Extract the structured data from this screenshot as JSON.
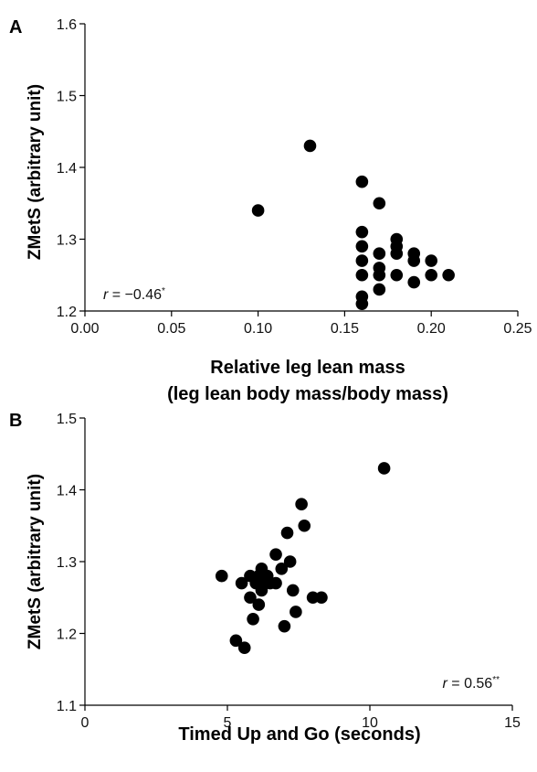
{
  "chart_data": [
    {
      "type": "scatter",
      "panel_label": "A",
      "xlabel_line1": "Relative leg lean mass",
      "xlabel_line2": "(leg lean body mass/body mass)",
      "ylabel": "ZMetS (arbitrary unit)",
      "xlim": [
        0.0,
        0.25
      ],
      "ylim": [
        1.2,
        1.6
      ],
      "xticks": [
        "0.00",
        "0.05",
        "0.10",
        "0.15",
        "0.20",
        "0.25"
      ],
      "yticks": [
        "1.2",
        "1.3",
        "1.4",
        "1.5",
        "1.6"
      ],
      "annotation": {
        "var": "r",
        "rest": " = −0.46",
        "sig": "*"
      },
      "points": [
        [
          0.1,
          1.34
        ],
        [
          0.13,
          1.43
        ],
        [
          0.16,
          1.38
        ],
        [
          0.16,
          1.31
        ],
        [
          0.16,
          1.29
        ],
        [
          0.16,
          1.27
        ],
        [
          0.16,
          1.25
        ],
        [
          0.16,
          1.22
        ],
        [
          0.16,
          1.21
        ],
        [
          0.17,
          1.35
        ],
        [
          0.17,
          1.28
        ],
        [
          0.17,
          1.26
        ],
        [
          0.17,
          1.25
        ],
        [
          0.17,
          1.23
        ],
        [
          0.18,
          1.3
        ],
        [
          0.18,
          1.29
        ],
        [
          0.18,
          1.28
        ],
        [
          0.18,
          1.25
        ],
        [
          0.19,
          1.28
        ],
        [
          0.19,
          1.27
        ],
        [
          0.19,
          1.24
        ],
        [
          0.2,
          1.27
        ],
        [
          0.2,
          1.25
        ],
        [
          0.21,
          1.25
        ]
      ]
    },
    {
      "type": "scatter",
      "panel_label": "B",
      "xlabel_line1": "Timed Up and Go (seconds)",
      "ylabel": "ZMetS (arbitrary unit)",
      "xlim": [
        0,
        15
      ],
      "ylim": [
        1.1,
        1.5
      ],
      "xticks": [
        "0",
        "5",
        "10",
        "15"
      ],
      "yticks": [
        "1.1",
        "1.2",
        "1.3",
        "1.4",
        "1.5"
      ],
      "annotation": {
        "var": "r",
        "rest": " = 0.56",
        "sig": "**"
      },
      "points": [
        [
          4.8,
          1.28
        ],
        [
          5.3,
          1.19
        ],
        [
          5.5,
          1.27
        ],
        [
          5.6,
          1.18
        ],
        [
          5.8,
          1.28
        ],
        [
          5.8,
          1.25
        ],
        [
          5.9,
          1.22
        ],
        [
          6.0,
          1.27
        ],
        [
          6.1,
          1.24
        ],
        [
          6.1,
          1.28
        ],
        [
          6.2,
          1.29
        ],
        [
          6.2,
          1.26
        ],
        [
          6.3,
          1.27
        ],
        [
          6.4,
          1.28
        ],
        [
          6.5,
          1.27
        ],
        [
          6.7,
          1.31
        ],
        [
          6.7,
          1.27
        ],
        [
          6.9,
          1.29
        ],
        [
          7.0,
          1.21
        ],
        [
          7.1,
          1.34
        ],
        [
          7.2,
          1.3
        ],
        [
          7.3,
          1.26
        ],
        [
          7.4,
          1.23
        ],
        [
          7.7,
          1.35
        ],
        [
          7.6,
          1.38
        ],
        [
          8.0,
          1.25
        ],
        [
          8.3,
          1.25
        ],
        [
          10.5,
          1.43
        ]
      ]
    }
  ]
}
